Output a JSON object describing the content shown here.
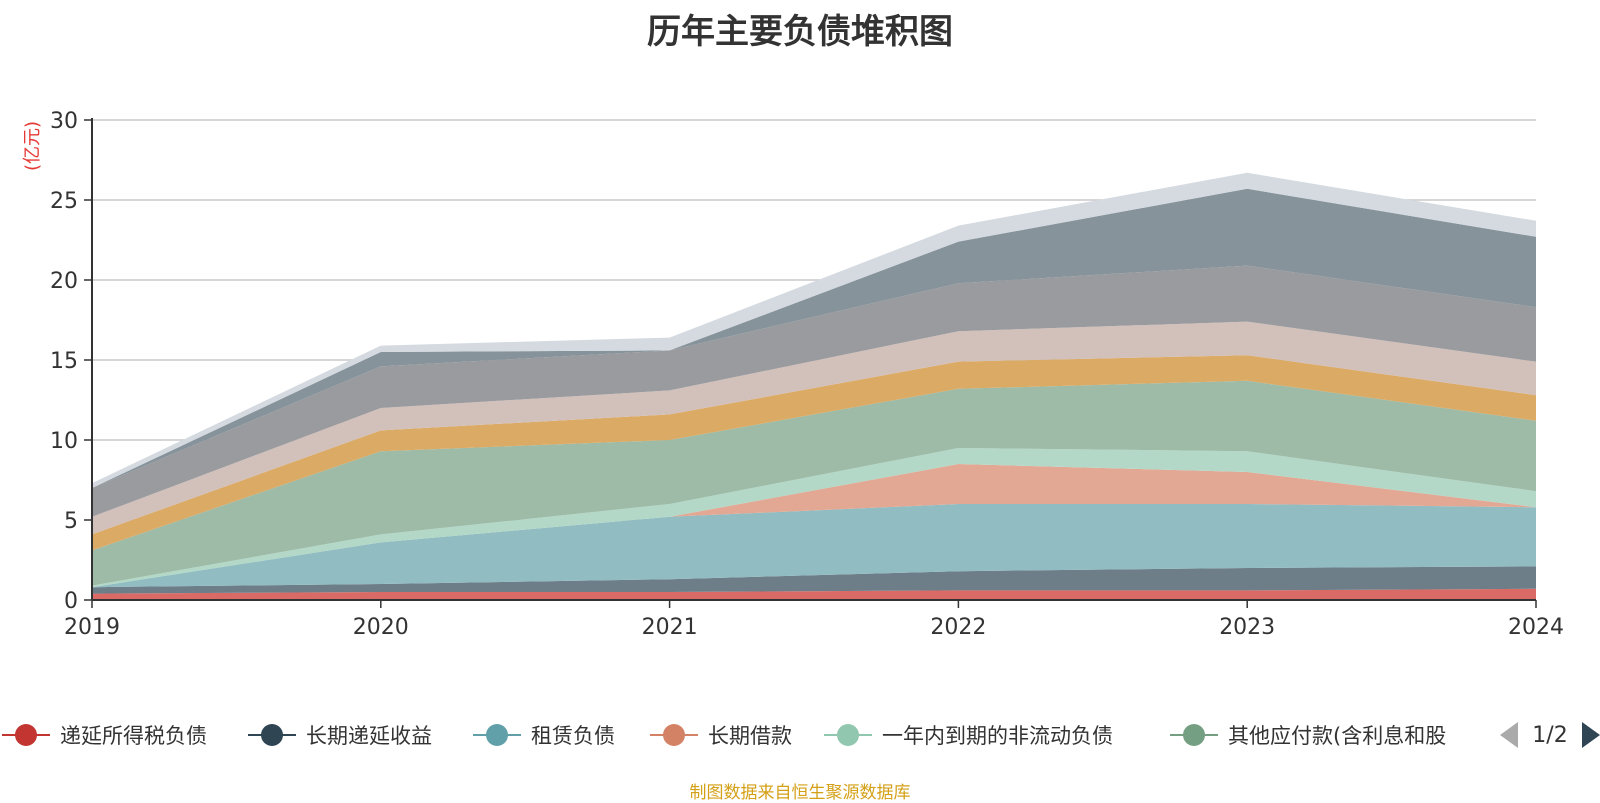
{
  "chart_data": {
    "type": "area",
    "title": "历年主要负债堆积图",
    "unit_label": "(亿元)",
    "x": [
      "2019",
      "2020",
      "2021",
      "2022",
      "2023",
      "2024"
    ],
    "ylim": [
      0,
      30
    ],
    "yticks": [
      "0",
      "5",
      "10",
      "15",
      "20",
      "25",
      "30"
    ],
    "grid": true,
    "stacked": true,
    "legend_position": "bottom",
    "series": [
      {
        "name": "递延所得税负债",
        "color": "#c23531",
        "fill": "#d96a66",
        "values": [
          0.4,
          0.5,
          0.5,
          0.6,
          0.6,
          0.7
        ]
      },
      {
        "name": "长期递延收益",
        "color": "#2f4554",
        "fill": "#6e7e89",
        "values": [
          0.4,
          0.5,
          0.8,
          1.2,
          1.4,
          1.4
        ]
      },
      {
        "name": "租赁负债",
        "color": "#61a0a8",
        "fill": "#90bcc2",
        "values": [
          0.0,
          2.6,
          3.9,
          4.2,
          4.0,
          3.7
        ]
      },
      {
        "name": "长期借款",
        "color": "#d48265",
        "fill": "#e2a894",
        "values": [
          0.0,
          0.0,
          0.0,
          2.5,
          2.0,
          0.0
        ]
      },
      {
        "name": "一年内到期的非流动负债",
        "color": "#91c7ae",
        "fill": "#b3d8c7",
        "values": [
          0.1,
          0.5,
          0.8,
          1.0,
          1.3,
          1.0
        ]
      },
      {
        "name": "其他应付款(含利息和股",
        "color": "#749f83",
        "fill": "#9dbba6",
        "values": [
          2.2,
          5.2,
          4.0,
          3.7,
          4.4,
          4.4
        ]
      },
      {
        "name": "",
        "color": "#ca8622",
        "fill": "#dbaa65",
        "values": [
          1.0,
          1.3,
          1.6,
          1.7,
          1.6,
          1.6
        ]
      },
      {
        "name": "",
        "color": "#bda29a",
        "fill": "#d2c0bb",
        "values": [
          1.1,
          1.4,
          1.5,
          1.9,
          2.1,
          2.1
        ]
      },
      {
        "name": "",
        "color": "#6e7074",
        "fill": "#9a9b9e",
        "values": [
          1.8,
          2.6,
          2.5,
          3.0,
          3.5,
          3.4
        ]
      },
      {
        "name": "",
        "color": "#546570",
        "fill": "#86939b",
        "values": [
          0.0,
          0.9,
          0.0,
          2.6,
          4.8,
          4.4
        ]
      },
      {
        "name": "",
        "color": "#c4ccd3",
        "fill": "#d4dae0",
        "values": [
          0.3,
          0.4,
          0.8,
          1.0,
          1.0,
          1.0
        ]
      }
    ]
  },
  "legend": {
    "page_indicator": "1/2",
    "prev_icon": "triangle-left-icon",
    "next_icon": "triangle-right-icon"
  },
  "source_note": "制图数据来自恒生聚源数据库"
}
